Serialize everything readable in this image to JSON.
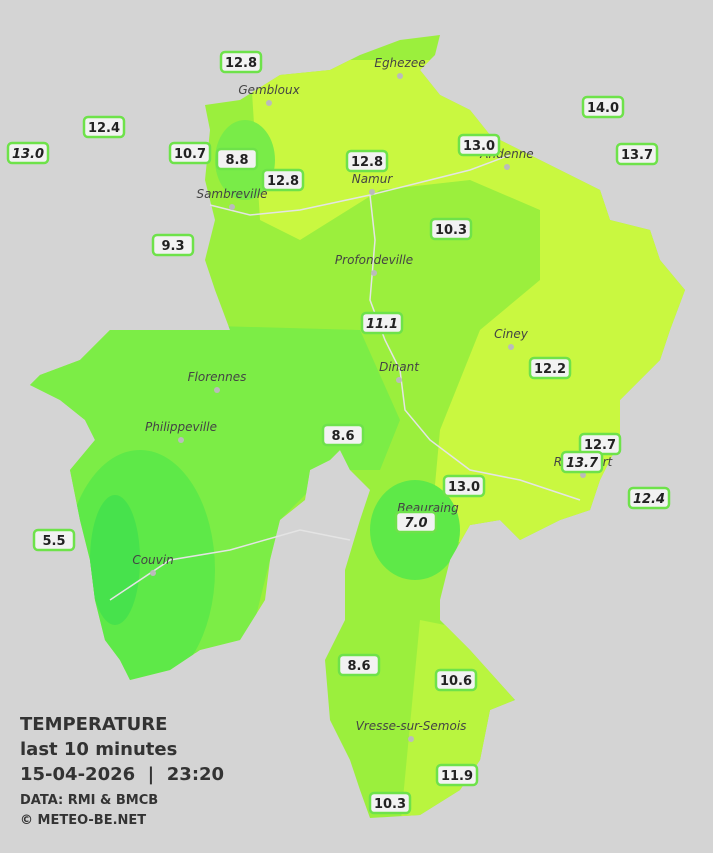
{
  "header": {
    "title": "TEMPERATURE",
    "subtitle": "last 10 minutes",
    "datetime": "15-04-2026  |  23:20",
    "source": "DATA: RMI & BMCB",
    "credit": "© METEO-BE.NET"
  },
  "towns": [
    "Eghezee",
    "Gembloux",
    "Andenne",
    "Namur",
    "Sambreville",
    "Profondeville",
    "Ciney",
    "Dinant",
    "Florennes",
    "Philippeville",
    "Rochefort",
    "Beauraing",
    "Couvin",
    "Vresse-sur-Semois"
  ],
  "stations": [
    "12.8",
    "12.4",
    "13.0",
    "10.7",
    "8.8",
    "12.8",
    "12.8",
    "13.0",
    "14.0",
    "13.7",
    "9.3",
    "10.3",
    "11.1",
    "12.2",
    "8.6",
    "12.7",
    "13.7",
    "13.0",
    "12.4",
    "7.0",
    "5.5",
    "8.6",
    "10.6",
    "11.9",
    "10.3"
  ]
}
